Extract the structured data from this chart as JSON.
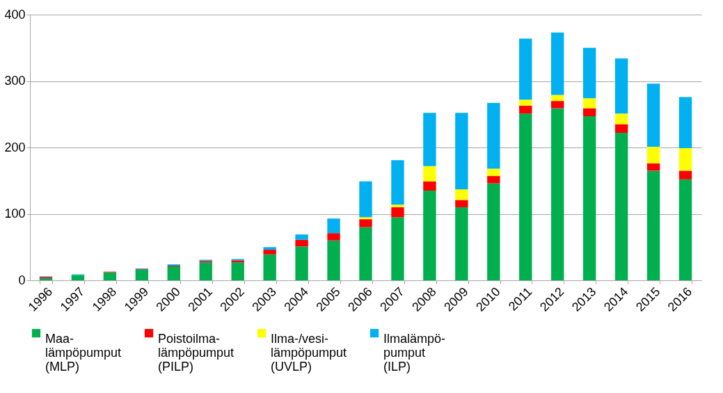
{
  "chart_data": {
    "type": "bar",
    "stacked": true,
    "categories": [
      "1996",
      "1997",
      "1998",
      "1999",
      "2000",
      "2001",
      "2002",
      "2003",
      "2004",
      "2005",
      "2006",
      "2007",
      "2008",
      "2009",
      "2010",
      "2011",
      "2012",
      "2013",
      "2014",
      "2015",
      "2016"
    ],
    "series": [
      {
        "name": "Maa-lämpöpumput (MLP)",
        "color": "#00b050",
        "values": [
          3,
          8,
          12,
          16,
          21,
          27,
          27,
          39,
          51,
          60,
          80,
          95,
          135,
          110,
          146,
          251,
          259,
          247,
          222,
          165,
          152
        ]
      },
      {
        "name": "Poistoilma-lämpöpumput (PILP)",
        "color": "#ff0000",
        "values": [
          2,
          0,
          1,
          1,
          1,
          2,
          3,
          7,
          10,
          11,
          12,
          15,
          14,
          11,
          11,
          12,
          11,
          12,
          13,
          11,
          13
        ]
      },
      {
        "name": "Ilma-/vesi-lämpöpumput (UVLP)",
        "color": "#ffff00",
        "values": [
          0,
          0,
          0,
          0,
          0,
          0,
          0,
          0,
          0,
          0,
          3,
          4,
          23,
          16,
          11,
          9,
          9,
          15,
          16,
          25,
          34
        ]
      },
      {
        "name": "Ilmalämpö-pumput (ILP)",
        "color": "#00b0f0",
        "values": [
          1,
          1,
          0,
          1,
          2,
          2,
          2,
          4,
          8,
          22,
          54,
          67,
          80,
          115,
          99,
          92,
          94,
          76,
          83,
          95,
          77
        ]
      }
    ],
    "ylim": [
      0,
      400
    ],
    "yticks": [
      0,
      100,
      200,
      300,
      400
    ],
    "grid": "y",
    "legend": "bottom"
  }
}
